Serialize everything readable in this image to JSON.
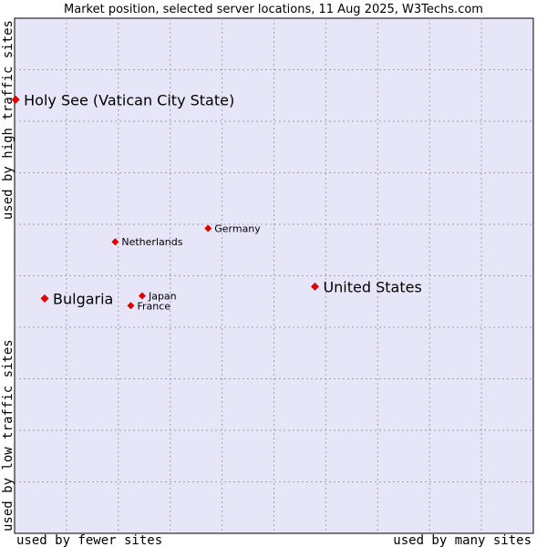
{
  "chart_data": {
    "type": "scatter",
    "title": "Market position, selected server locations, 11 Aug 2025, W3Techs.com",
    "xlabel_left": "used by fewer sites",
    "xlabel_right": "used by many sites",
    "ylabel_bottom": "used by low traffic sites",
    "ylabel_top": "used by high traffic sites",
    "xlim": [
      0,
      100
    ],
    "ylim": [
      0,
      100
    ],
    "grid": true,
    "plot_background": "#e6e6f8",
    "grid_color": "#a0a0b8",
    "marker_color": "#e00000",
    "points": [
      {
        "label": "Holy See (Vatican City State)",
        "x": 0.2,
        "y": 84.2,
        "size": "large"
      },
      {
        "label": "Germany",
        "x": 37.3,
        "y": 59.2,
        "size": "small"
      },
      {
        "label": "Netherlands",
        "x": 19.4,
        "y": 56.6,
        "size": "small"
      },
      {
        "label": "United States",
        "x": 57.9,
        "y": 47.9,
        "size": "large"
      },
      {
        "label": "Japan",
        "x": 24.6,
        "y": 46.1,
        "size": "small"
      },
      {
        "label": "Bulgaria",
        "x": 5.8,
        "y": 45.6,
        "size": "large"
      },
      {
        "label": "France",
        "x": 22.4,
        "y": 44.2,
        "size": "small"
      }
    ]
  }
}
